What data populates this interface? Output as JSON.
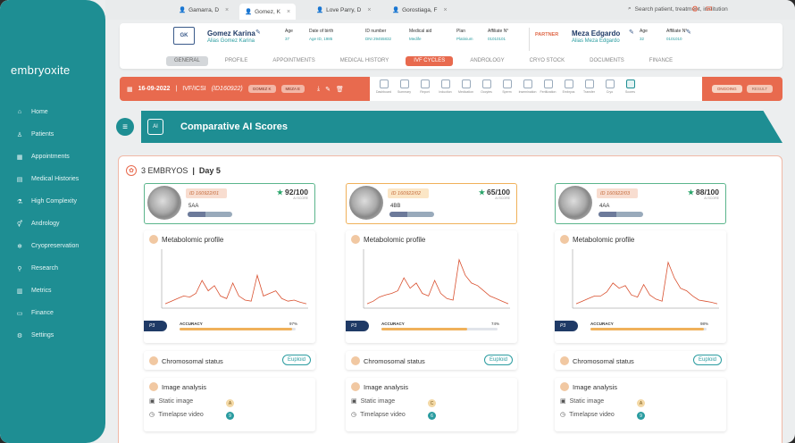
{
  "app": {
    "logo": "embryoxite"
  },
  "sidebar": {
    "items": [
      {
        "label": "Home",
        "icon": "home-icon"
      },
      {
        "label": "Patients",
        "icon": "user-icon"
      },
      {
        "label": "Appointments",
        "icon": "calendar-icon"
      },
      {
        "label": "Medical Histories",
        "icon": "folder-icon"
      },
      {
        "label": "High Complexity",
        "icon": "flask-icon"
      },
      {
        "label": "Andrology",
        "icon": "gender-icon"
      },
      {
        "label": "Cryopreservation",
        "icon": "snowflake-icon"
      },
      {
        "label": "Research",
        "icon": "microscope-icon"
      },
      {
        "label": "Metrics",
        "icon": "chart-icon"
      },
      {
        "label": "Finance",
        "icon": "wallet-icon"
      },
      {
        "label": "Settings",
        "icon": "gear-icon"
      }
    ]
  },
  "topbar": {
    "tabs": [
      "Gamarra, D",
      "Gomez, K",
      "Love Parry, D",
      "Gorostiaga, F"
    ],
    "search_placeholder": "Search patient, treatment, institution"
  },
  "patient": {
    "initials": "GK",
    "name": "Gomez Karina",
    "alias": "Alias Gomez Karina",
    "age_label": "Age",
    "age": "37",
    "dob_label": "Date of birth",
    "dob": "Age ID, 1985",
    "id_label": "ID number",
    "id": "DNI 29455832",
    "medical_aid_label": "Medical aid",
    "medical_aid": "Medife",
    "plan_label": "Plan",
    "plan": "Platinium",
    "affiliate_label": "Affiliate N°",
    "affiliate": "01010101"
  },
  "partner": {
    "label": "PARTNER",
    "name": "Meza Edgardo",
    "alias": "Alias Meza Edgardo",
    "age_label": "Age",
    "age": "32",
    "affiliate_label": "Affiliate N°",
    "affiliate": "0101010"
  },
  "header_tabs": [
    "GENERAL",
    "PROFILE",
    "APPOINTMENTS",
    "MEDICAL HISTORY",
    "IVF CYCLES",
    "ANDROLOGY",
    "CRYO STOCK",
    "DOCUMENTS",
    "FINANCE"
  ],
  "cycle": {
    "date": "16-09-2022",
    "type": "IVF/ICSI",
    "id": "(ID160922)",
    "pill1": "GOMEZ K",
    "pill2": "MEZA E",
    "status1": "ONGOING",
    "status2": "RESULT",
    "tools": [
      "Dashboard",
      "Summary",
      "Report",
      "Induction",
      "Medication",
      "Oocytes",
      "Sperm",
      "Insemination",
      "Fertilization",
      "Embryos",
      "Transfer",
      "Cryo",
      "Scores"
    ]
  },
  "banner": {
    "title": "Comparative AI Scores",
    "icon": "ai-chip-icon"
  },
  "summary": {
    "count": "3 EMBRYOS",
    "day": "Day 5"
  },
  "embryos": [
    {
      "id": "ID 160922/01",
      "grade": "5AA",
      "score": "92/100",
      "score_label": "AI SCORE",
      "accuracy_label": "ACCURACY",
      "accuracy": "97%",
      "accuracy_value": 0.97,
      "p": "P3",
      "chromosomal": "Chromosomal status",
      "euploid": "Euploid",
      "metabolomic": "Metabolomic profile",
      "image_analysis": "Image analysis",
      "static": "Static image",
      "static_grade": "A",
      "timelapse": "Timelapse video",
      "timelapse_grade": "9",
      "color": "#5bb58c"
    },
    {
      "id": "ID 160922/02",
      "grade": "4BB",
      "score": "65/100",
      "score_label": "AI SCORE",
      "accuracy_label": "ACCURACY",
      "accuracy": "74%",
      "accuracy_value": 0.74,
      "p": "P3",
      "chromosomal": "Chromosomal status",
      "euploid": "Euploid",
      "metabolomic": "Metabolomic profile",
      "image_analysis": "Image analysis",
      "static": "Static image",
      "static_grade": "C",
      "timelapse": "Timelapse video",
      "timelapse_grade": "6",
      "color": "#f0b15a"
    },
    {
      "id": "ID 160922/03",
      "grade": "4AA",
      "score": "88/100",
      "score_label": "AI SCORE",
      "accuracy_label": "ACCURACY",
      "accuracy": "98%",
      "accuracy_value": 0.98,
      "p": "P3",
      "chromosomal": "Chromosomal status",
      "euploid": "Euploid",
      "metabolomic": "Metabolomic profile",
      "image_analysis": "Image analysis",
      "static": "Static image",
      "static_grade": "A",
      "timelapse": "Timelapse video",
      "timelapse_grade": "9",
      "color": "#5bb58c"
    }
  ]
}
